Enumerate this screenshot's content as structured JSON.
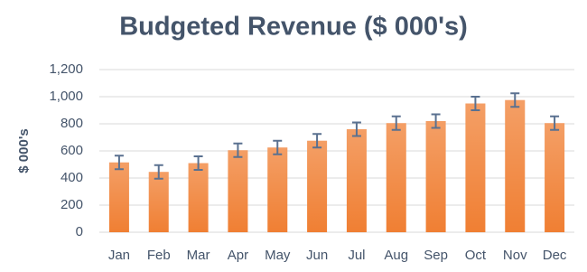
{
  "chart_data": {
    "type": "bar",
    "title": "Budgeted Revenue ($ 000's)",
    "y_label": "$ 000's",
    "categories": [
      "Jan",
      "Feb",
      "Mar",
      "Apr",
      "May",
      "Jun",
      "Jul",
      "Aug",
      "Sep",
      "Oct",
      "Nov",
      "Dec"
    ],
    "values": [
      515,
      445,
      510,
      605,
      625,
      675,
      760,
      805,
      820,
      950,
      975,
      805
    ],
    "errors": [
      50,
      50,
      50,
      50,
      50,
      50,
      50,
      50,
      50,
      50,
      50,
      50
    ],
    "color": "#f07f33",
    "error_color": "#5a7190",
    "ylim": [
      0,
      1200
    ],
    "yticks": [
      0,
      200,
      400,
      600,
      800,
      {
        "value": 1000,
        "label": "1,000"
      },
      {
        "value": 1200,
        "label": "1,200"
      }
    ],
    "grid": true
  }
}
